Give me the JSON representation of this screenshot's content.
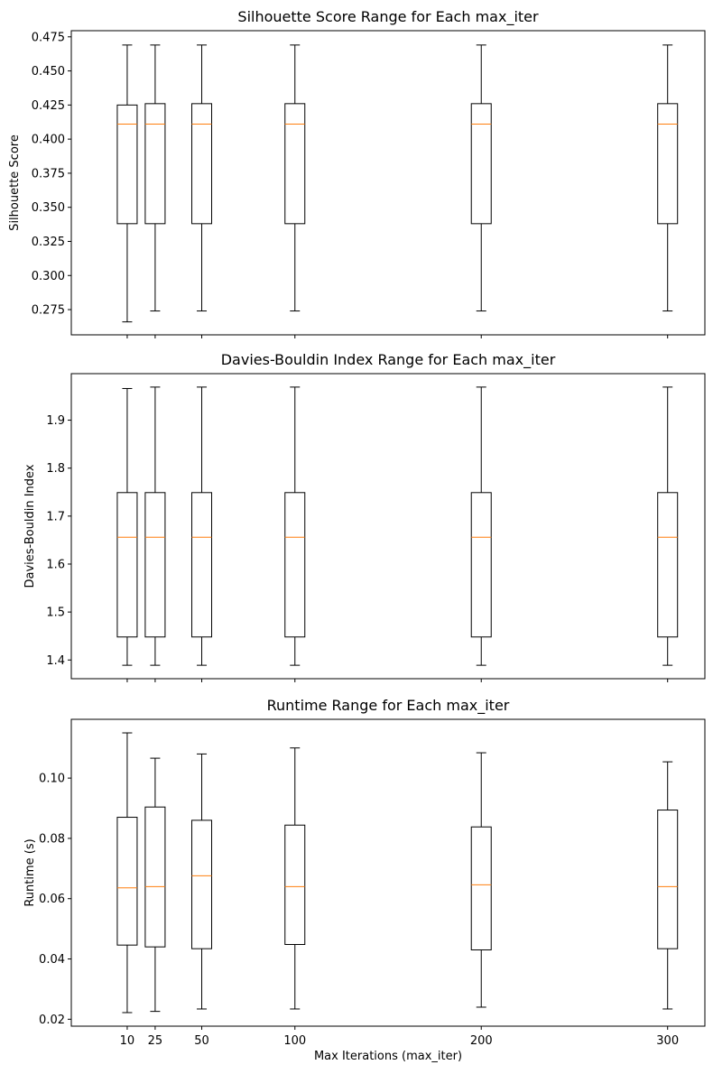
{
  "chart_data": [
    {
      "type": "box",
      "title": "Silhouette Score Range for Each max_iter",
      "xlabel": "",
      "ylabel": "Silhouette Score",
      "x": [
        10,
        25,
        50,
        100,
        200,
        300
      ],
      "xlim": [
        -20,
        320
      ],
      "ylim": [
        0.2565,
        0.4795
      ],
      "yticks": [
        0.275,
        0.3,
        0.325,
        0.35,
        0.375,
        0.4,
        0.425,
        0.45,
        0.475
      ],
      "ytick_labels": [
        "0.275",
        "0.300",
        "0.325",
        "0.350",
        "0.375",
        "0.400",
        "0.425",
        "0.450",
        "0.475"
      ],
      "show_xtick_labels": false,
      "boxes": [
        {
          "x": 10,
          "whisker_low": 0.266,
          "q1": 0.338,
          "median": 0.411,
          "q3": 0.425,
          "whisker_high": 0.469
        },
        {
          "x": 25,
          "whisker_low": 0.274,
          "q1": 0.338,
          "median": 0.411,
          "q3": 0.426,
          "whisker_high": 0.469
        },
        {
          "x": 50,
          "whisker_low": 0.274,
          "q1": 0.338,
          "median": 0.411,
          "q3": 0.426,
          "whisker_high": 0.469
        },
        {
          "x": 100,
          "whisker_low": 0.274,
          "q1": 0.338,
          "median": 0.411,
          "q3": 0.426,
          "whisker_high": 0.469
        },
        {
          "x": 200,
          "whisker_low": 0.274,
          "q1": 0.338,
          "median": 0.411,
          "q3": 0.426,
          "whisker_high": 0.469
        },
        {
          "x": 300,
          "whisker_low": 0.274,
          "q1": 0.338,
          "median": 0.411,
          "q3": 0.426,
          "whisker_high": 0.469
        }
      ],
      "grid": false
    },
    {
      "type": "box",
      "title": "Davies-Bouldin Index Range for Each max_iter",
      "xlabel": "",
      "ylabel": "Davies-Bouldin Index",
      "x": [
        10,
        25,
        50,
        100,
        200,
        300
      ],
      "xlim": [
        -20,
        320
      ],
      "ylim": [
        1.361,
        1.997
      ],
      "yticks": [
        1.4,
        1.5,
        1.6,
        1.7,
        1.8,
        1.9
      ],
      "ytick_labels": [
        "1.4",
        "1.5",
        "1.6",
        "1.7",
        "1.8",
        "1.9"
      ],
      "show_xtick_labels": false,
      "boxes": [
        {
          "x": 10,
          "whisker_low": 1.389,
          "q1": 1.448,
          "median": 1.656,
          "q3": 1.749,
          "whisker_high": 1.966
        },
        {
          "x": 25,
          "whisker_low": 1.389,
          "q1": 1.448,
          "median": 1.656,
          "q3": 1.749,
          "whisker_high": 1.969
        },
        {
          "x": 50,
          "whisker_low": 1.389,
          "q1": 1.448,
          "median": 1.656,
          "q3": 1.749,
          "whisker_high": 1.969
        },
        {
          "x": 100,
          "whisker_low": 1.389,
          "q1": 1.448,
          "median": 1.656,
          "q3": 1.749,
          "whisker_high": 1.969
        },
        {
          "x": 200,
          "whisker_low": 1.389,
          "q1": 1.448,
          "median": 1.656,
          "q3": 1.749,
          "whisker_high": 1.969
        },
        {
          "x": 300,
          "whisker_low": 1.389,
          "q1": 1.448,
          "median": 1.656,
          "q3": 1.749,
          "whisker_high": 1.969
        }
      ],
      "grid": false
    },
    {
      "type": "box",
      "title": "Runtime Range for Each max_iter",
      "xlabel": "Max Iterations (max_iter)",
      "ylabel": "Runtime (s)",
      "x": [
        10,
        25,
        50,
        100,
        200,
        300
      ],
      "xlim": [
        -20,
        320
      ],
      "ylim": [
        0.0177,
        0.1195
      ],
      "yticks": [
        0.02,
        0.04,
        0.06,
        0.08,
        0.1
      ],
      "ytick_labels": [
        "0.02",
        "0.04",
        "0.06",
        "0.08",
        "0.10"
      ],
      "show_xtick_labels": true,
      "xtick_labels": [
        "10",
        "25",
        "50",
        "100",
        "200",
        "300"
      ],
      "boxes": [
        {
          "x": 10,
          "whisker_low": 0.0222,
          "q1": 0.0446,
          "median": 0.0636,
          "q3": 0.087,
          "whisker_high": 0.115
        },
        {
          "x": 25,
          "whisker_low": 0.0226,
          "q1": 0.044,
          "median": 0.064,
          "q3": 0.0904,
          "whisker_high": 0.1066
        },
        {
          "x": 50,
          "whisker_low": 0.0234,
          "q1": 0.0434,
          "median": 0.0676,
          "q3": 0.086,
          "whisker_high": 0.108
        },
        {
          "x": 100,
          "whisker_low": 0.0234,
          "q1": 0.0448,
          "median": 0.064,
          "q3": 0.0844,
          "whisker_high": 0.11
        },
        {
          "x": 200,
          "whisker_low": 0.024,
          "q1": 0.043,
          "median": 0.0646,
          "q3": 0.0838,
          "whisker_high": 0.1084
        },
        {
          "x": 300,
          "whisker_low": 0.0234,
          "q1": 0.0434,
          "median": 0.064,
          "q3": 0.0894,
          "whisker_high": 0.1054
        }
      ],
      "grid": false
    }
  ],
  "colors": {
    "box": "#000000",
    "median": "#ff7f0e",
    "background": "#ffffff"
  }
}
